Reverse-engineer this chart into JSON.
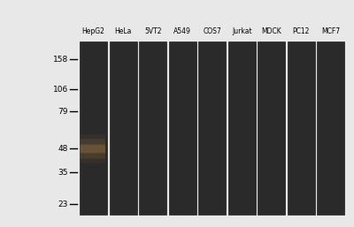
{
  "background_color": "#e8e8e8",
  "lane_labels": [
    "HepG2",
    "HeLa",
    "5VT2",
    "A549",
    "COS7",
    "Jurkat",
    "MDCK",
    "PC12",
    "MCF7"
  ],
  "mw_markers": [
    158,
    106,
    79,
    48,
    35,
    23
  ],
  "lane_color": "#2a2a2a",
  "lane_edge_color": "#1a1a1a",
  "band_lane_index": 0,
  "band_mw": 48,
  "fig_bg": "#e8e8e8"
}
